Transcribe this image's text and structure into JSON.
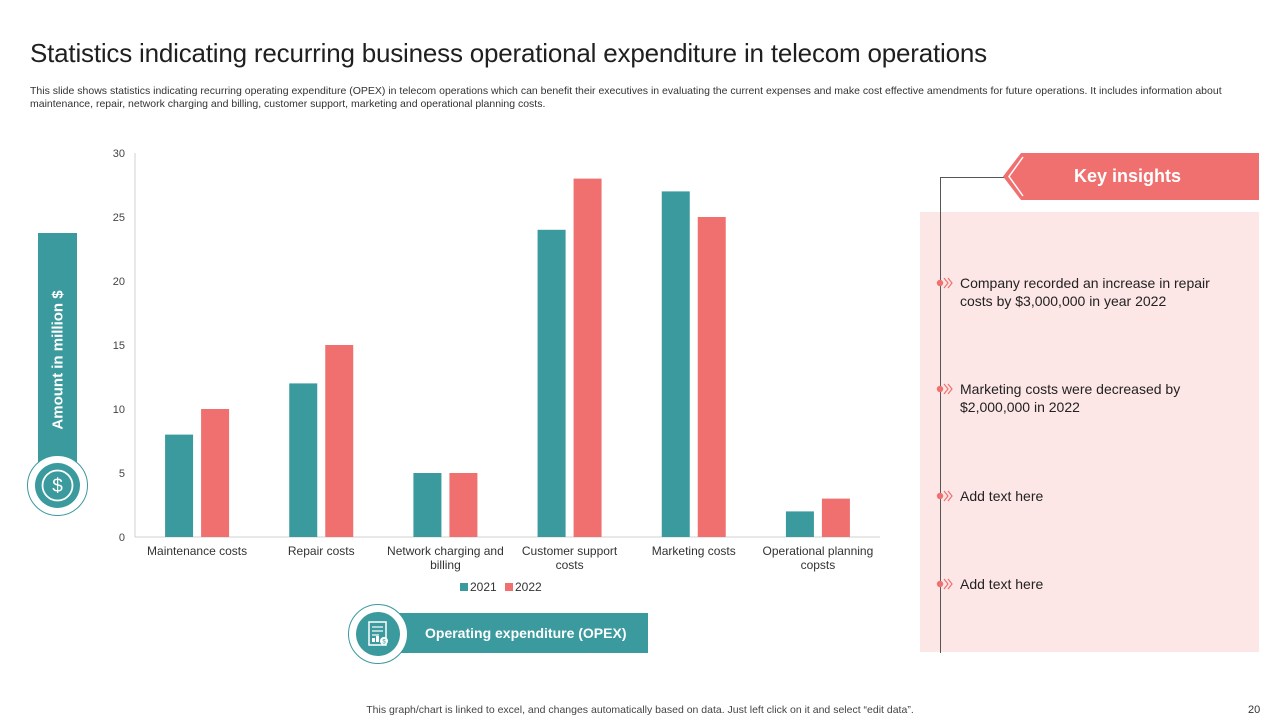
{
  "slide": {
    "title": "Statistics indicating recurring business operational expenditure in telecom operations",
    "subtitle": "This slide shows statistics indicating recurring operating expenditure (OPEX) in telecom operations which can benefit their executives in evaluating the current expenses and make cost effective amendments for future operations. It includes information about maintenance, repair, network charging and billing, customer support, marketing and operational planning costs.",
    "y_axis_badge": "Amount in million $",
    "x_axis_badge": "Operating expenditure (OPEX)",
    "footer": "This graph/chart is linked to excel,  and changes automatically based on data. Just left click on it and select “edit data”.",
    "page_number": "20"
  },
  "insights": {
    "heading": "Key insights",
    "items": [
      "Company recorded an increase in repair costs by $3,000,000 in year 2022",
      "Marketing costs were decreased by $2,000,000 in 2022",
      "Add text here",
      "Add text here"
    ]
  },
  "colors": {
    "teal": "#3a9a9e",
    "coral": "#f07070",
    "panel": "#fde6e6"
  },
  "chart_data": {
    "type": "bar",
    "title": "",
    "xlabel": "Operating expenditure (OPEX)",
    "ylabel": "Amount in million $",
    "ylim": [
      0,
      30
    ],
    "yticks": [
      0,
      5,
      10,
      15,
      20,
      25,
      30
    ],
    "categories": [
      [
        "Maintenance costs"
      ],
      [
        "Repair costs"
      ],
      [
        "Network charging and",
        "billing"
      ],
      [
        "Customer support",
        "costs"
      ],
      [
        "Marketing costs"
      ],
      [
        "Operational planning",
        "copsts"
      ]
    ],
    "series": [
      {
        "name": "2021",
        "color": "#3a9a9e",
        "values": [
          8,
          12,
          5,
          24,
          27,
          2
        ]
      },
      {
        "name": "2022",
        "color": "#f07070",
        "values": [
          10,
          15,
          5,
          28,
          25,
          3
        ]
      }
    ],
    "legend": "bottom"
  }
}
